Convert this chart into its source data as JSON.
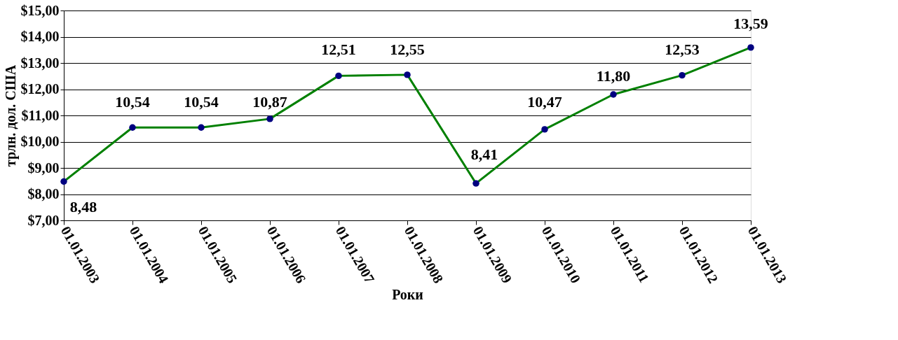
{
  "chart_data": {
    "type": "line",
    "xlabel": "Роки",
    "ylabel": "трлн. дол. США",
    "categories": [
      "01.01.2003",
      "01.01.2004",
      "01.01.2005",
      "01.01.2006",
      "01.01.2007",
      "01.01.2008",
      "01.01.2009",
      "01.01.2010",
      "01.01.2011",
      "01.01.2012",
      "01.01.2013"
    ],
    "series": [
      {
        "color": "#008000",
        "values": [
          8.48,
          10.54,
          10.54,
          10.87,
          12.51,
          12.55,
          8.41,
          10.47,
          11.8,
          12.53,
          13.59
        ],
        "value_labels": [
          "8,48",
          "10,54",
          "10,54",
          "10,87",
          "12,51",
          "12,55",
          "8,41",
          "10,47",
          "11,80",
          "12,53",
          "13,59"
        ]
      }
    ],
    "ylim": [
      7,
      15
    ],
    "yticks": [
      {
        "value": 7,
        "label": "$7,00"
      },
      {
        "value": 8,
        "label": "$8,00"
      },
      {
        "value": 9,
        "label": "$9,00"
      },
      {
        "value": 10,
        "label": "$10,00"
      },
      {
        "value": 11,
        "label": "$11,00"
      },
      {
        "value": 12,
        "label": "$12,00"
      },
      {
        "value": 13,
        "label": "$13,00"
      },
      {
        "value": 14,
        "label": "$14,00"
      },
      {
        "value": 15,
        "label": "$15,00"
      }
    ],
    "grid": "y",
    "marker": "circle",
    "line_style": "solid"
  }
}
